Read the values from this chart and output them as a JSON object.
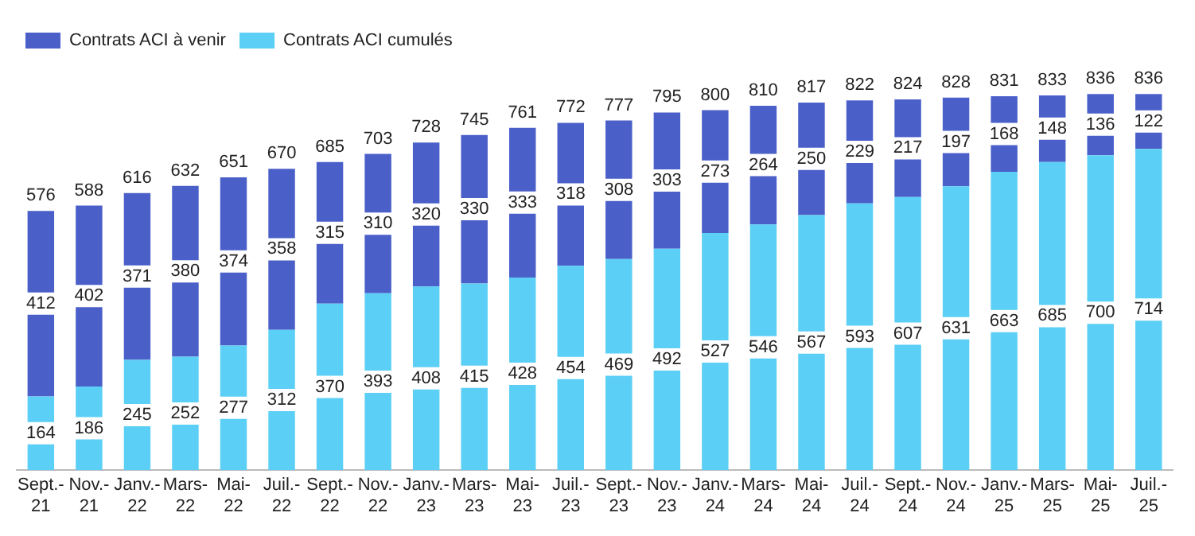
{
  "chart_data": {
    "type": "bar",
    "stacked": true,
    "legend": "top left",
    "grid": false,
    "data_labels": true,
    "categories": [
      "Sept.-21",
      "Nov.-21",
      "Janv.-22",
      "Mars-22",
      "Mai-22",
      "Juil.-22",
      "Sept.-22",
      "Nov.-22",
      "Janv.-23",
      "Mars-23",
      "Mai-23",
      "Juil.-23",
      "Sept.-23",
      "Nov.-23",
      "Janv.-24",
      "Mars-24",
      "Mai-24",
      "Juil.-24",
      "Sept.-24",
      "Nov.-24",
      "Janv.-25",
      "Mars-25",
      "Mai-25",
      "Juil.-25"
    ],
    "series": [
      {
        "name": "Contrats ACI cumulés",
        "color": "#5bcff5",
        "values": [
          164,
          186,
          245,
          252,
          277,
          312,
          370,
          393,
          408,
          415,
          428,
          454,
          469,
          492,
          527,
          546,
          567,
          593,
          607,
          631,
          663,
          685,
          700,
          714
        ]
      },
      {
        "name": "Contrats ACI à venir",
        "color": "#4a5fc8",
        "values": [
          412,
          402,
          371,
          380,
          374,
          358,
          315,
          310,
          320,
          330,
          333,
          318,
          308,
          303,
          273,
          264,
          250,
          229,
          217,
          197,
          168,
          148,
          136,
          122
        ]
      }
    ],
    "totals": [
      "576",
      "588",
      "616",
      "632",
      "651",
      "670",
      "685",
      "703",
      "728",
      "745",
      "761",
      "772",
      "777",
      "795",
      "800",
      "810",
      "817",
      "822",
      "824",
      "828",
      "831",
      "833",
      "836",
      "836"
    ]
  }
}
